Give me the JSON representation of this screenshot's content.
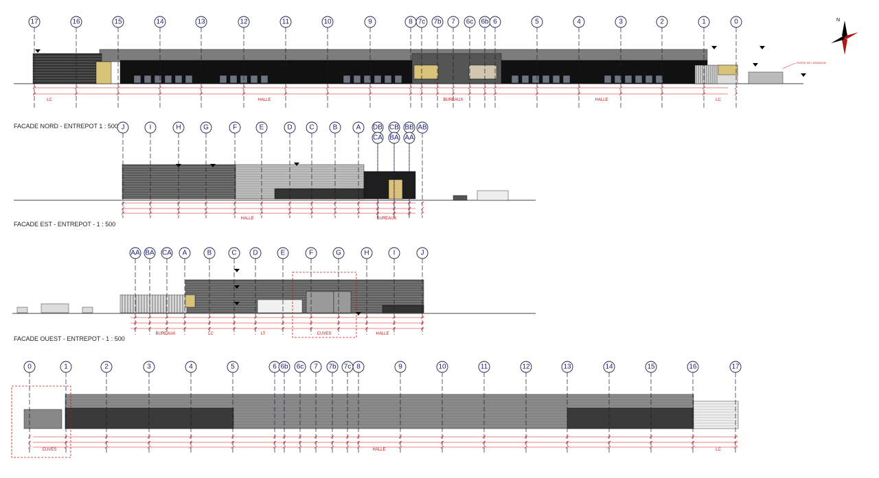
{
  "colors": {
    "grid": "#1a1a7a",
    "dimension": "#d01010",
    "wall_dark": "#111111",
    "wall_grey": "#8a8a8a",
    "roof": "#7d7d7d",
    "accent_yellow": "#d9c27a"
  },
  "facades": [
    {
      "id": "nord",
      "title": "FACADE NORD - ENTREPOT 1 : 500",
      "grid": [
        "17",
        "16",
        "15",
        "14",
        "13",
        "12",
        "11",
        "10",
        "9",
        "8",
        "7c",
        "7b",
        "7",
        "6c",
        "6b",
        "6",
        "5",
        "4",
        "3",
        "2",
        "1",
        "0"
      ],
      "zones": [
        "LC",
        "HALLE",
        "BUREAUX",
        "HALLE",
        "LC"
      ],
      "note": "POSTE DE LIVRAISON"
    },
    {
      "id": "est",
      "title": "FACADE EST - ENTREPOT - 1 : 500",
      "grid": [
        "J",
        "I",
        "H",
        "G",
        "F",
        "E",
        "D",
        "C",
        "B",
        "A",
        "DB",
        "CA",
        "CB",
        "BA",
        "BB",
        "AA",
        "AB"
      ],
      "zones": [
        "HALLE",
        "BUREAUX"
      ]
    },
    {
      "id": "ouest",
      "title": "FACADE OUEST - ENTREPOT - 1 : 500",
      "grid": [
        "AA",
        "BA",
        "CA",
        "A",
        "B",
        "C",
        "D",
        "E",
        "F",
        "G",
        "H",
        "I",
        "J"
      ],
      "zones": [
        "BUREAUX",
        "LC",
        "LT",
        "CUVES",
        "HALLE"
      ]
    },
    {
      "id": "sud",
      "grid": [
        "0",
        "1",
        "2",
        "3",
        "4",
        "5",
        "6",
        "6b",
        "6c",
        "7",
        "7b",
        "7c",
        "8",
        "9",
        "10",
        "11",
        "12",
        "13",
        "14",
        "15",
        "16",
        "17"
      ],
      "zones": [
        "CUVES",
        "HALLE",
        "LC"
      ]
    }
  ],
  "compass": {
    "icon": "north-arrow-compass-rose",
    "label": "N"
  }
}
